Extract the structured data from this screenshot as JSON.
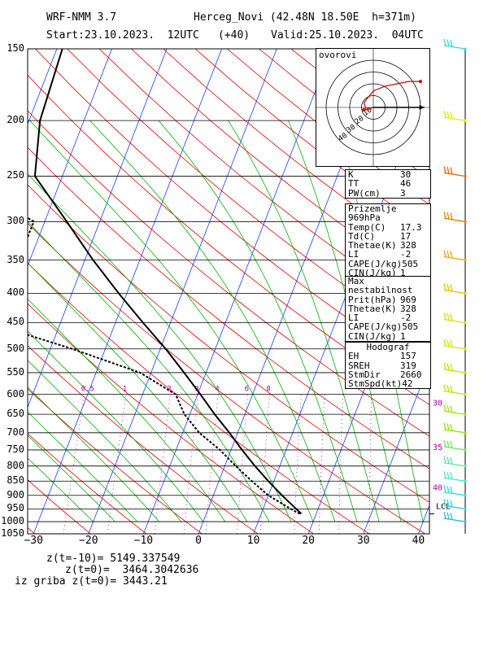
{
  "header": {
    "model": "WRF-NMM 3.7",
    "station": "Herceg_Novi (42.48N 18.50E  h=371m)",
    "start": "Start:23.10.2023.  12UTC",
    "offset": "(+40)",
    "valid": "Valid:25.10.2023.  04UTC"
  },
  "hodograph": {
    "title": "ovorovi",
    "ring_labels": [
      "10",
      "20",
      "30",
      "40"
    ],
    "ring_speeds": [
      10,
      20,
      30,
      40
    ],
    "max_speed": 40,
    "path_uv": [
      [
        0,
        0
      ],
      [
        -6,
        -2
      ],
      [
        -8,
        4
      ],
      [
        0,
        14
      ],
      [
        10,
        18
      ],
      [
        20,
        20
      ],
      [
        30,
        22
      ],
      [
        40,
        22
      ]
    ],
    "storm_motion_uv": [
      -8,
      -2
    ],
    "colors": {
      "rings": "#000000",
      "path": "#cc0000",
      "arrow": "#000000"
    }
  },
  "indices": [
    {
      "label": "K",
      "value": "30"
    },
    {
      "label": "TT",
      "value": "46"
    },
    {
      "label": "PW(cm)",
      "value": "3"
    }
  ],
  "surface": {
    "title": "Prizemlje 969hPa",
    "rows": [
      {
        "label": "Temp(C)",
        "value": "17.3"
      },
      {
        "label": "Td(C)",
        "value": "17"
      },
      {
        "label": "Thetae(K)",
        "value": "328"
      },
      {
        "label": "LI",
        "value": "-2"
      },
      {
        "label": "CAPE(J/kg)",
        "value": "505"
      },
      {
        "label": "CIN(J/kg)",
        "value": "1"
      }
    ]
  },
  "maxinstab": {
    "title": "Max nestabilnost",
    "rows": [
      {
        "label": "Prit(hPa)",
        "value": "969"
      },
      {
        "label": "Thetae(K)",
        "value": "328"
      },
      {
        "label": "LI",
        "value": "-2"
      },
      {
        "label": "CAPE(J/kg)",
        "value": "505"
      },
      {
        "label": "CIN(J/kg)",
        "value": "1"
      }
    ]
  },
  "hodo_stats": {
    "title": "Hodograf",
    "rows": [
      {
        "label": "EH",
        "value": "157"
      },
      {
        "label": "SREH",
        "value": "319"
      },
      {
        "label": "StmDir",
        "value": "2660"
      },
      {
        "label": "StmSpd(kt)",
        "value": "42"
      }
    ]
  },
  "footer": {
    "line1": "z(t=-10)= 5149.337549",
    "line2": "z(t=0)=  3464.3042636",
    "line3": "iz griba z(t=0)= 3443.21"
  },
  "chart_data": {
    "type": "line",
    "subtype": "skew-T log-p",
    "pressure_levels": [
      150,
      200,
      250,
      300,
      350,
      400,
      450,
      500,
      550,
      600,
      650,
      700,
      750,
      800,
      850,
      900,
      950,
      1000,
      1050
    ],
    "temp_ticks": [
      -30,
      -20,
      -10,
      0,
      10,
      20,
      30,
      40
    ],
    "temp_tick_labels": [
      "−30",
      "−20",
      "−10",
      "0",
      "10",
      "20",
      "30",
      "40"
    ],
    "xlim": [
      -30,
      42
    ],
    "ylim": [
      1050,
      150
    ],
    "skew_deg_per_log_p": 32,
    "lcl_label": "LCL",
    "lcl_pressure": 969,
    "mixing_ratio_labels": [
      {
        "value": "0.5",
        "w": 0.5
      },
      {
        "value": "1",
        "w": 1
      },
      {
        "value": "2",
        "w": 2
      },
      {
        "value": "3",
        "w": 3
      },
      {
        "value": "4",
        "w": 4
      },
      {
        "value": "6",
        "w": 6
      },
      {
        "value": "8",
        "w": 8
      }
    ],
    "right_labels": [
      {
        "value": "30",
        "p": 620
      },
      {
        "value": "35",
        "p": 740
      },
      {
        "value": "40",
        "p": 870
      }
    ],
    "series": [
      {
        "name": "T",
        "style": "solid",
        "points": [
          [
            969,
            17.3
          ],
          [
            950,
            16
          ],
          [
            900,
            12.5
          ],
          [
            850,
            9
          ],
          [
            800,
            5.5
          ],
          [
            750,
            2
          ],
          [
            700,
            -1.5
          ],
          [
            650,
            -5.5
          ],
          [
            600,
            -9.5
          ],
          [
            550,
            -14
          ],
          [
            500,
            -19
          ],
          [
            450,
            -25
          ],
          [
            400,
            -31.5
          ],
          [
            350,
            -38.5
          ],
          [
            300,
            -46
          ],
          [
            250,
            -55
          ],
          [
            200,
            -58
          ],
          [
            150,
            -59
          ]
        ]
      },
      {
        "name": "Td",
        "style": "dashed",
        "points": [
          [
            969,
            17
          ],
          [
            950,
            15
          ],
          [
            900,
            10
          ],
          [
            850,
            6
          ],
          [
            800,
            2
          ],
          [
            750,
            -2
          ],
          [
            700,
            -7
          ],
          [
            650,
            -11
          ],
          [
            600,
            -14
          ],
          [
            550,
            -22
          ],
          [
            500,
            -36
          ],
          [
            450,
            -53
          ],
          [
            400,
            -54
          ],
          [
            350,
            -52
          ],
          [
            300,
            -52
          ],
          [
            275,
            -60
          ],
          [
            250,
            -72
          ],
          [
            200,
            -88
          ],
          [
            150,
            -85
          ]
        ]
      }
    ],
    "wind_barbs": [
      {
        "p": 150,
        "color": "#30d8d8"
      },
      {
        "p": 200,
        "color": "#e8e800"
      },
      {
        "p": 250,
        "color": "#e86000"
      },
      {
        "p": 300,
        "color": "#e88000"
      },
      {
        "p": 350,
        "color": "#e8a000"
      },
      {
        "p": 400,
        "color": "#e8c000"
      },
      {
        "p": 450,
        "color": "#d8e000"
      },
      {
        "p": 500,
        "color": "#c8e800"
      },
      {
        "p": 550,
        "color": "#c0e800"
      },
      {
        "p": 600,
        "color": "#b0e800"
      },
      {
        "p": 650,
        "color": "#a0e800"
      },
      {
        "p": 700,
        "color": "#90e800"
      },
      {
        "p": 750,
        "color": "#70e860"
      },
      {
        "p": 800,
        "color": "#50e8a0"
      },
      {
        "p": 850,
        "color": "#40e8c0"
      },
      {
        "p": 900,
        "color": "#30d8d8"
      },
      {
        "p": 950,
        "color": "#30c8e8"
      },
      {
        "p": 1000,
        "color": "#30b8e8"
      }
    ],
    "line_colors": {
      "isotherm": "#1a3cff",
      "dry_adiabat": "#e00000",
      "moist_adiabat": "#00b000",
      "mixing_ratio": "#b000b0",
      "isobar": "#000000",
      "temp": "#000000",
      "dewpoint": "#000000",
      "label_purple": "#aa00aa"
    }
  }
}
